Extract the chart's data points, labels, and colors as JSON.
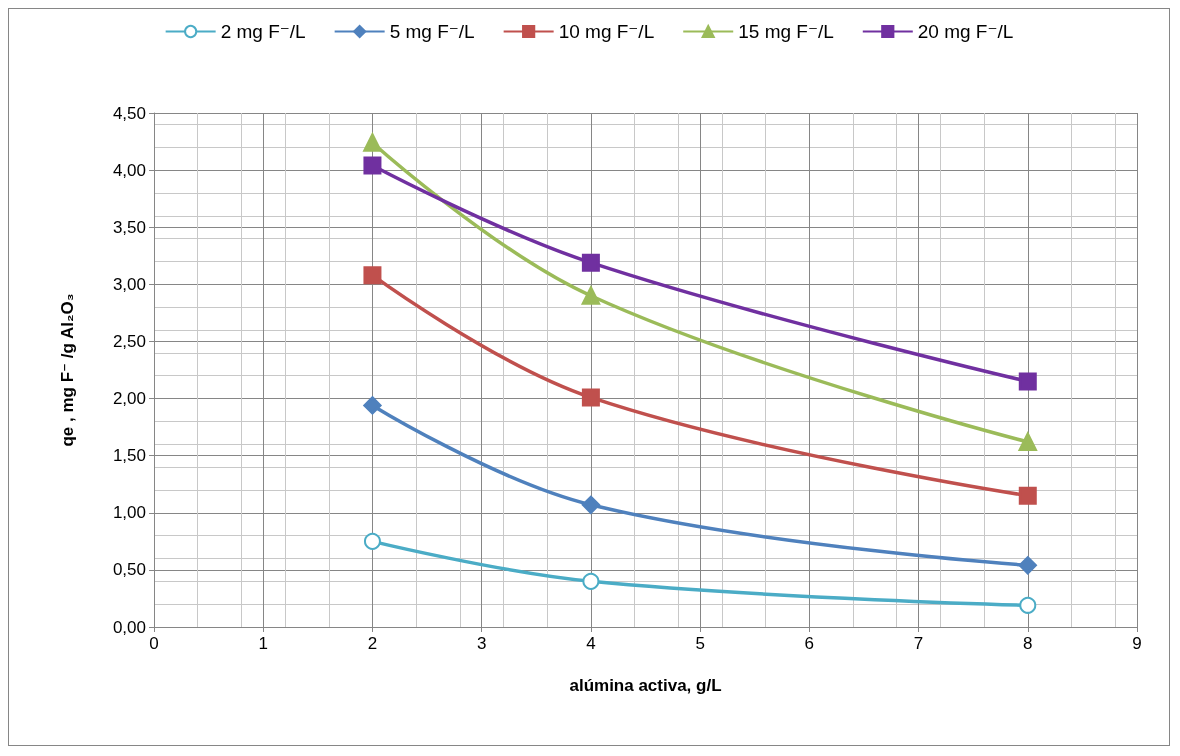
{
  "chart_data": {
    "type": "line",
    "xlabel": "alúmina activa, g/L",
    "ylabel": "qe , mg F⁻ /g Al₂O₃",
    "x": [
      2,
      4,
      8
    ],
    "series": [
      {
        "name": "2 mg F⁻/L",
        "color": "#4bacc6",
        "marker": "circle",
        "values": [
          0.75,
          0.4,
          0.19
        ]
      },
      {
        "name": "5 mg F⁻/L",
        "color": "#4f81bd",
        "marker": "diamond",
        "values": [
          1.94,
          1.07,
          0.54
        ]
      },
      {
        "name": "10 mg F⁻/L",
        "color": "#c0504d",
        "marker": "square",
        "values": [
          3.08,
          2.01,
          1.15
        ]
      },
      {
        "name": "15 mg F⁻/L",
        "color": "#9bbb59",
        "marker": "triangle",
        "values": [
          4.24,
          2.9,
          1.62
        ]
      },
      {
        "name": "20 mg F⁻/L",
        "color": "#7030a0",
        "marker": "square",
        "values": [
          4.04,
          3.19,
          2.15
        ]
      }
    ],
    "xlim": [
      0,
      9
    ],
    "xticks": [
      0,
      1,
      2,
      3,
      4,
      5,
      6,
      7,
      8,
      9
    ],
    "ylim": [
      0,
      4.5
    ],
    "yticks": [
      {
        "value": 0,
        "label": "0,00"
      },
      {
        "value": 0.5,
        "label": "0,50"
      },
      {
        "value": 1,
        "label": "1,00"
      },
      {
        "value": 1.5,
        "label": "1,50"
      },
      {
        "value": 2,
        "label": "2,00"
      },
      {
        "value": 2.5,
        "label": "2,50"
      },
      {
        "value": 3,
        "label": "3,00"
      },
      {
        "value": 3.5,
        "label": "3,50"
      },
      {
        "value": 4,
        "label": "4,00"
      },
      {
        "value": 4.5,
        "label": "4,50"
      }
    ],
    "grid": true,
    "legend": "top",
    "line_style": "solid"
  }
}
